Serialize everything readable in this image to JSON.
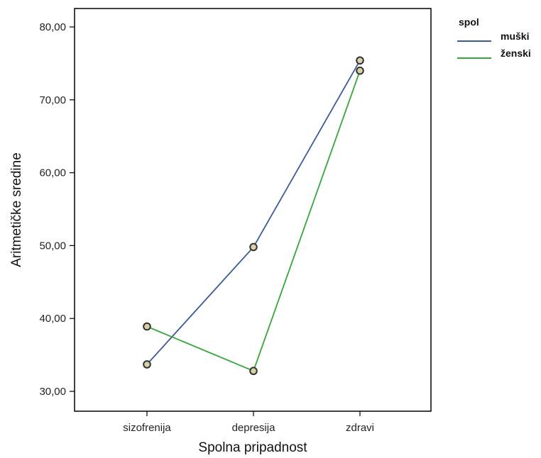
{
  "chart_data": {
    "type": "line",
    "title": "",
    "xlabel": "Spolna pripadnost",
    "ylabel": "Aritmetičke sredine",
    "categories": [
      "sizofrenija",
      "depresija",
      "zdravi"
    ],
    "ylim": [
      28,
      82
    ],
    "yticks": [
      30,
      40,
      50,
      60,
      70,
      80
    ],
    "ytick_labels": [
      "30,00",
      "40,00",
      "50,00",
      "60,00",
      "70,00",
      "80,00"
    ],
    "grid": false,
    "legend": {
      "title": "spol",
      "placement": "outside-top-right"
    },
    "marker_fill": "#d8d0a8",
    "marker_edge": "#333333",
    "series": [
      {
        "name": "muški",
        "color": "#3c5b9c",
        "values": [
          33.7,
          49.8,
          75.4
        ]
      },
      {
        "name": "ženski",
        "color": "#33a83a",
        "values": [
          38.9,
          32.8,
          74.0
        ]
      }
    ]
  }
}
